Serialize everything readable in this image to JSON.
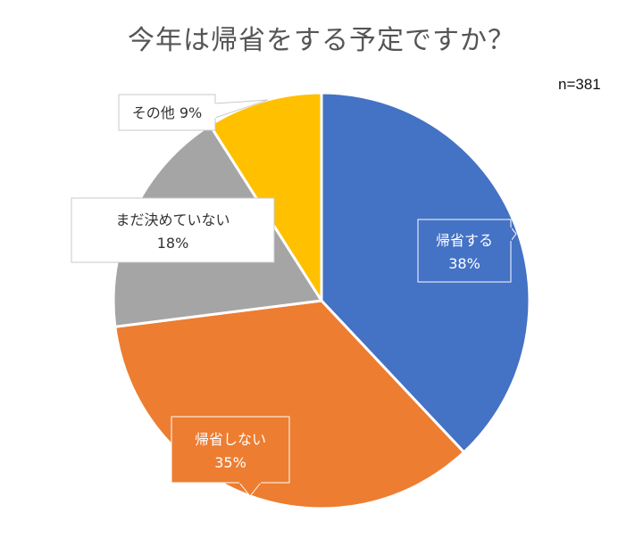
{
  "chart_data": {
    "type": "pie",
    "title": "今年は帰省をする予定ですか？",
    "note": "n=381",
    "series": [
      {
        "name": "帰省する",
        "value": 38,
        "label_pct": "38%",
        "color": "#4472C4"
      },
      {
        "name": "帰省しない",
        "value": 35,
        "label_pct": "35%",
        "color": "#ED7D31"
      },
      {
        "name": "まだ決めていない",
        "value": 18,
        "label_pct": "18%",
        "color": "#A5A5A5"
      },
      {
        "name": "その他",
        "value": 9,
        "label_pct": "9%",
        "color": "#FFC000"
      }
    ],
    "start_angle": "12 o'clock",
    "direction": "clockwise"
  }
}
